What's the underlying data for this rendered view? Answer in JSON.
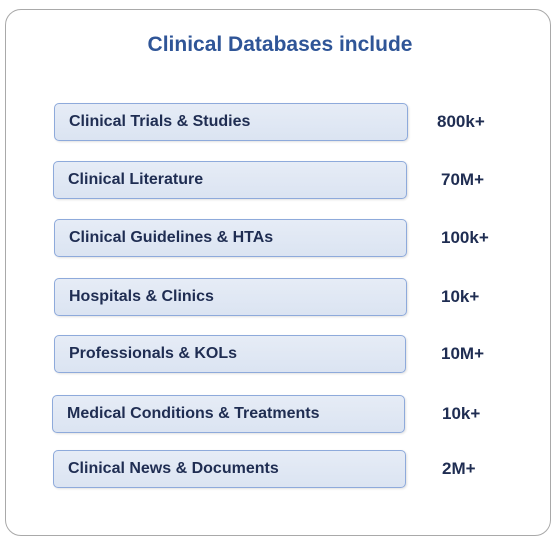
{
  "title": "Clinical Databases include",
  "databases": [
    {
      "label": "Clinical Trials & Studies",
      "count": "800k+"
    },
    {
      "label": "Clinical Literature",
      "count": "70M+"
    },
    {
      "label": "Clinical Guidelines & HTAs",
      "count": "100k+"
    },
    {
      "label": "Hospitals & Clinics",
      "count": "10k+"
    },
    {
      "label": "Professionals & KOLs",
      "count": "10M+"
    },
    {
      "label": "Medical Conditions & Treatments",
      "count": "10k+"
    },
    {
      "label": "Clinical News & Documents",
      "count": "2M+"
    }
  ]
}
